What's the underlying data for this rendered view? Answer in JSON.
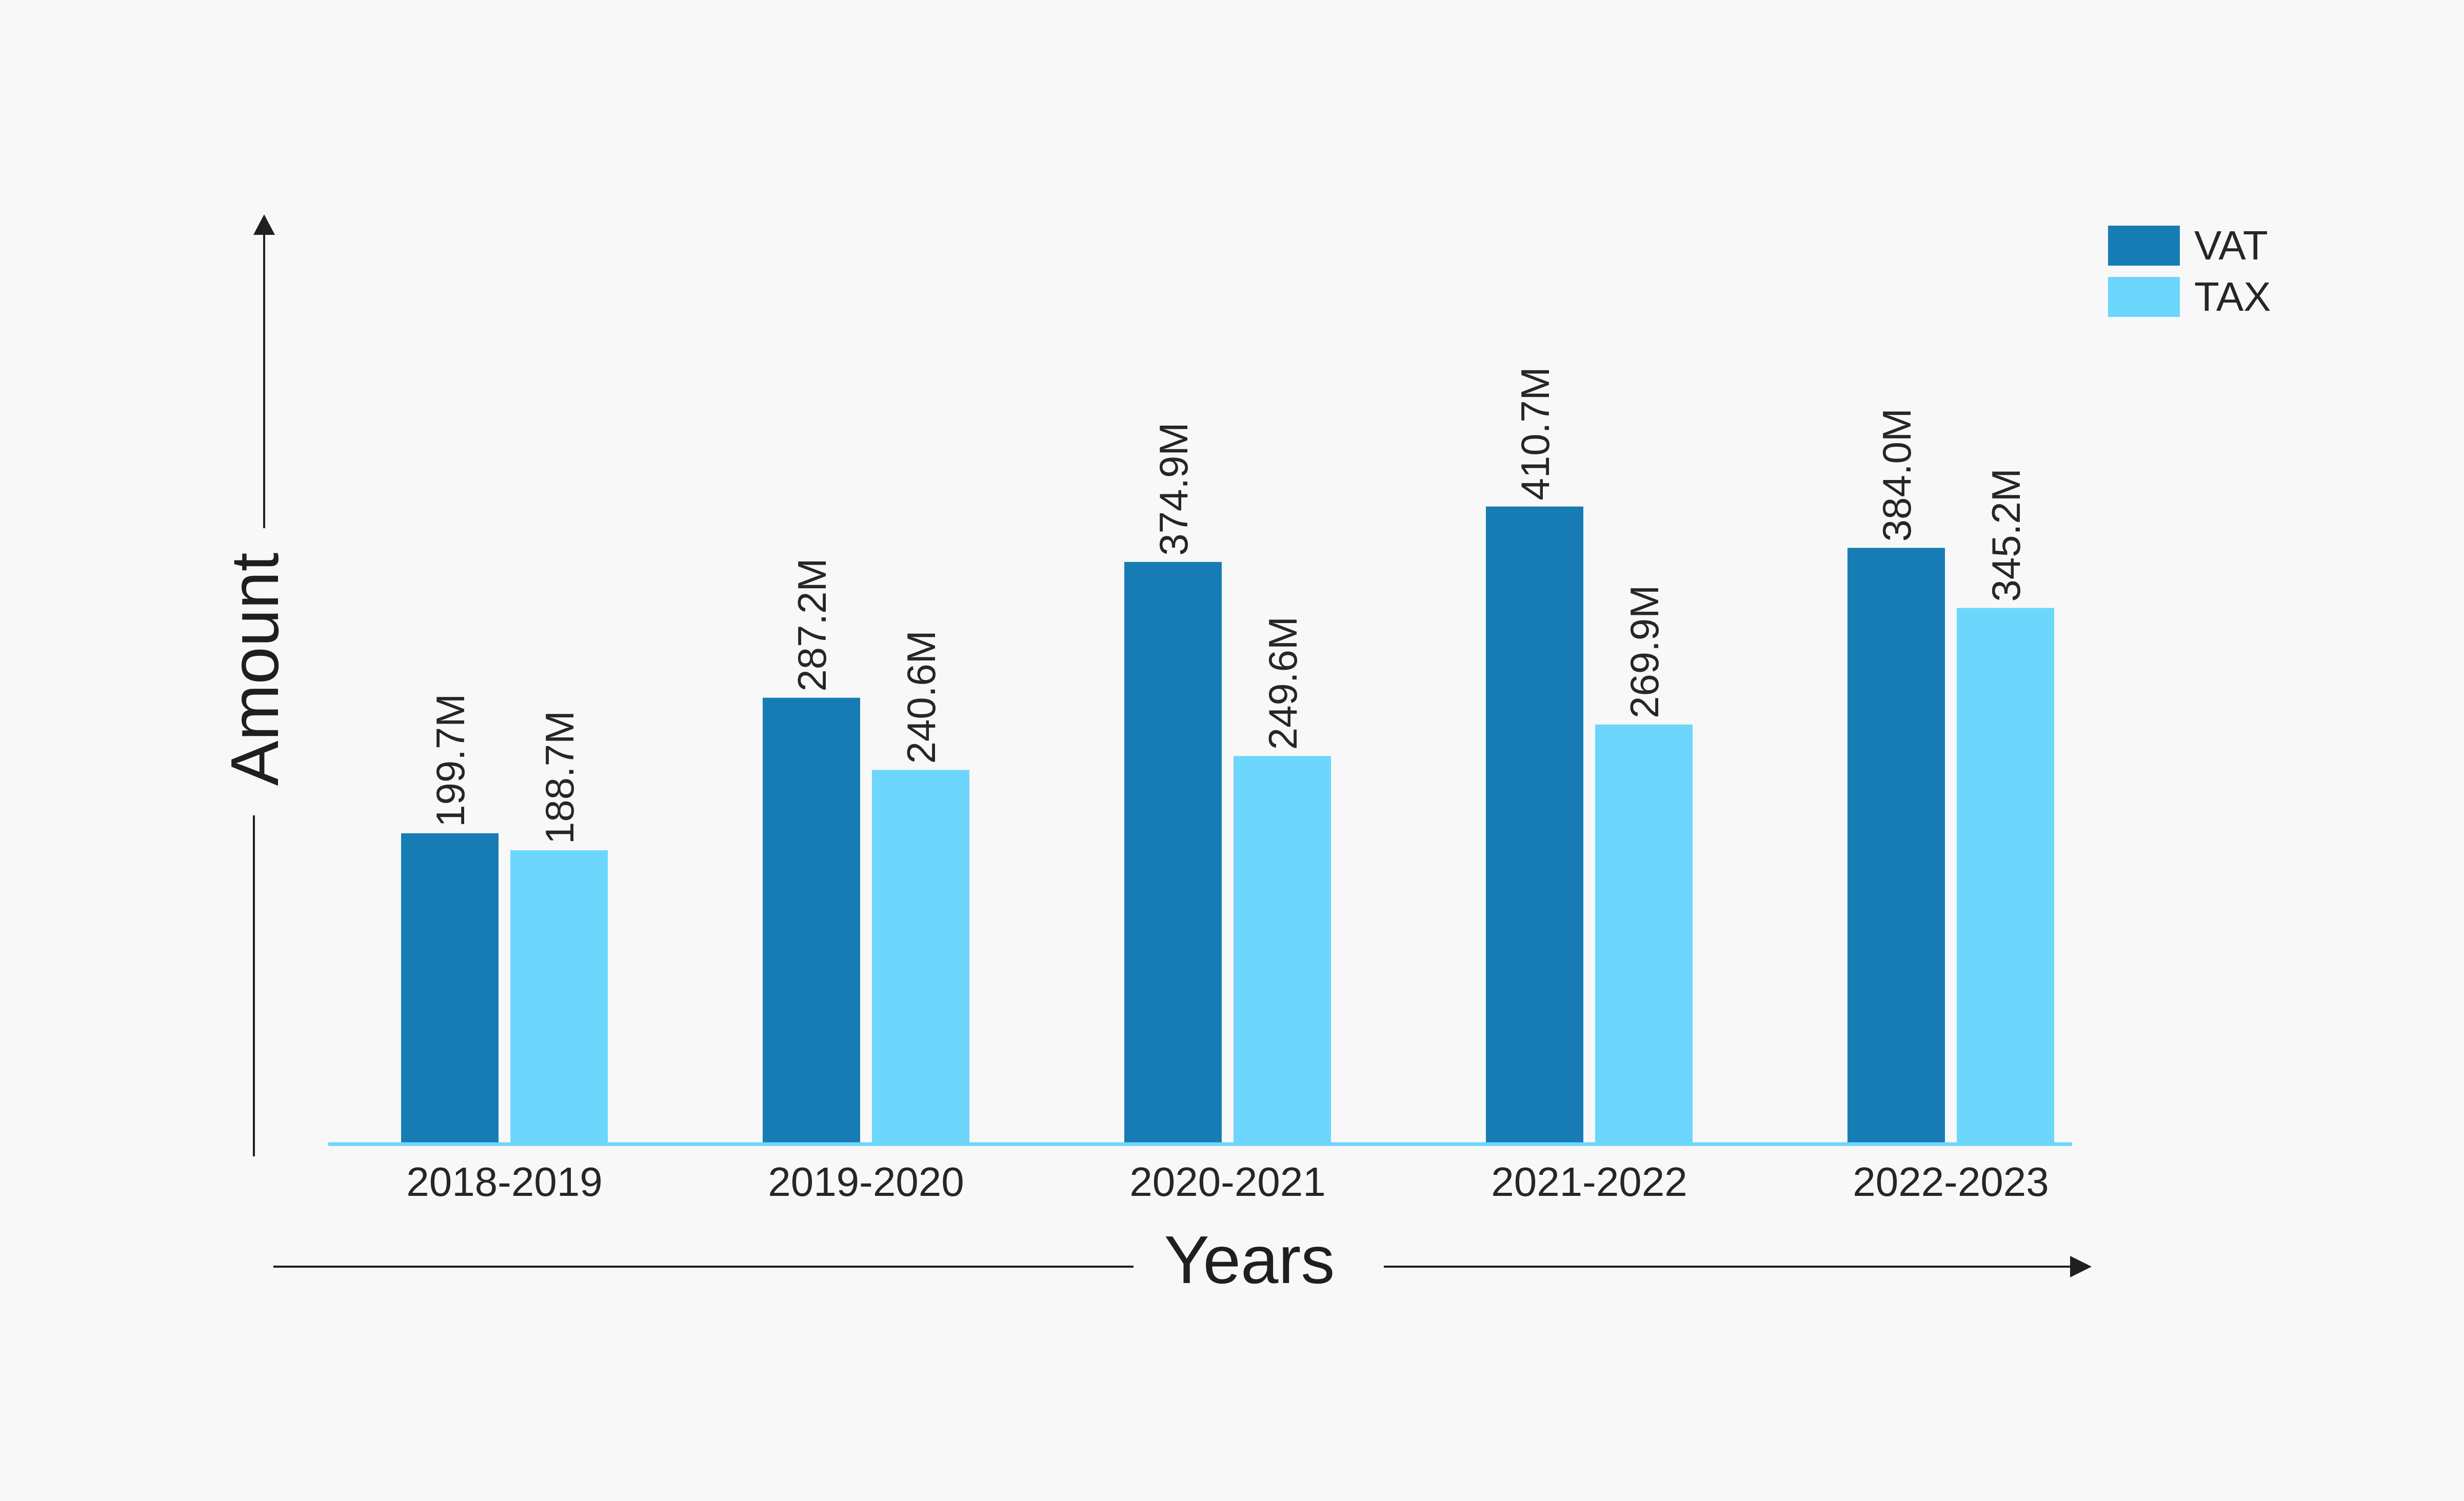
{
  "chart_data": {
    "type": "bar",
    "categories": [
      "2018-2019",
      "2019-2020",
      "2020-2021",
      "2021-2022",
      "2022-2023"
    ],
    "series": [
      {
        "name": "VAT",
        "values": [
          199.7,
          287.2,
          374.9,
          410.7,
          384.0
        ],
        "labels": [
          "199.7M",
          "287.2M",
          "374.9M",
          "410.7M",
          "384.0M"
        ],
        "color": "#187cb4"
      },
      {
        "name": "TAX",
        "values": [
          188.7,
          240.6,
          249.6,
          269.9,
          345.2
        ],
        "labels": [
          "188.7M",
          "240.6M",
          "249.6M",
          "269.9M",
          "345.2M"
        ],
        "color": "#6cd6fc"
      }
    ],
    "xlabel": "Years",
    "ylabel": "Amount",
    "ylim": [
      0,
      540
    ],
    "grid": false,
    "legend_position": "top-right"
  }
}
